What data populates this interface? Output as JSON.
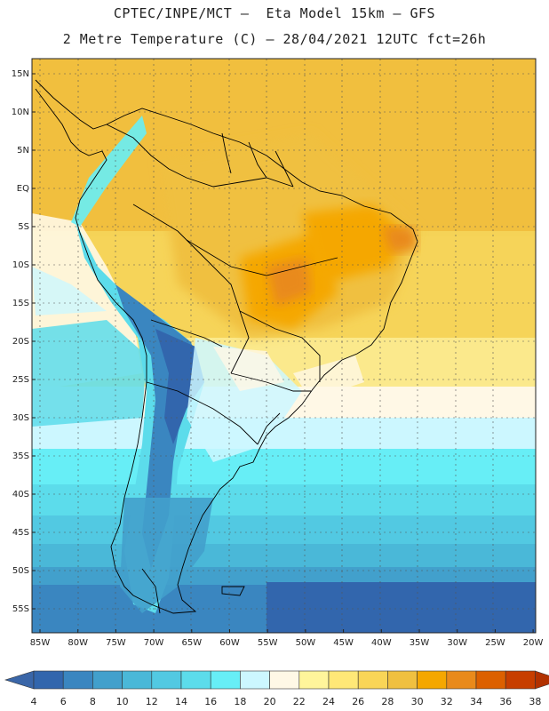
{
  "title_line1": "CPTEC/INPE/MCT –  Eta Model 15km – GFS",
  "title_line2": "2 Metre Temperature (C) – 28/04/2021 12UTC fct=26h",
  "lat_labels": [
    "15N",
    "10N",
    "5N",
    "EQ",
    "5S",
    "10S",
    "15S",
    "20S",
    "25S",
    "30S",
    "35S",
    "40S",
    "45S",
    "50S",
    "55S"
  ],
  "lon_labels": [
    "85W",
    "80W",
    "75W",
    "70W",
    "65W",
    "60W",
    "55W",
    "50W",
    "45W",
    "40W",
    "35W",
    "30W",
    "25W",
    "20W"
  ],
  "colorbar": {
    "ticks": [
      "4",
      "6",
      "8",
      "10",
      "12",
      "14",
      "16",
      "18",
      "20",
      "22",
      "24",
      "26",
      "28",
      "30",
      "32",
      "34",
      "36",
      "38"
    ],
    "colors": [
      "#3266ad",
      "#3a86c0",
      "#42a0cc",
      "#4ab8d8",
      "#52c9e2",
      "#5cdceb",
      "#67eef6",
      "#ccf7ff",
      "#fff8e6",
      "#fff59b",
      "#ffe877",
      "#f9d557",
      "#f0c040",
      "#f5a700",
      "#e98a1b",
      "#dc6000",
      "#c73e00"
    ],
    "low_color": "#3a66a8",
    "high_color": "#b23100"
  }
}
